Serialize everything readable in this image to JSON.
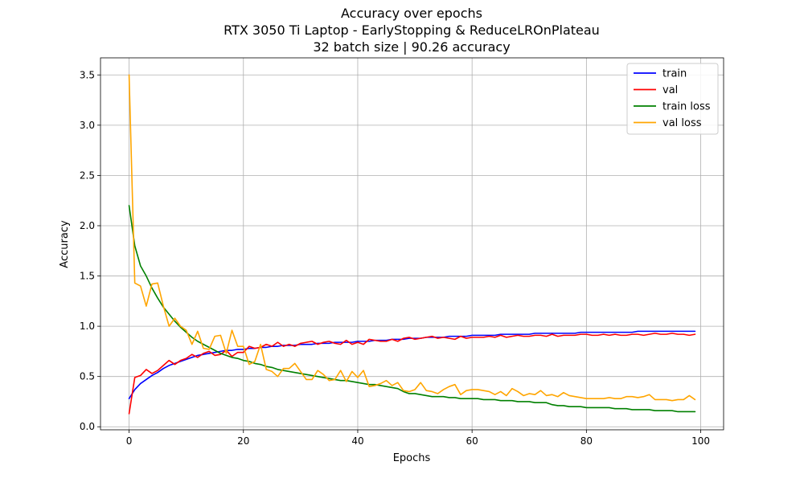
{
  "chart_data": {
    "type": "line",
    "title": "Accuracy over epochs",
    "subtitle_lines": [
      "RTX 3050 Ti Laptop - EarlyStopping & ReduceLROnPlateau",
      "32 batch size | 90.26 accuracy"
    ],
    "xlabel": "Epochs",
    "ylabel": "Accuracy",
    "xlim": [
      -5,
      104
    ],
    "ylim": [
      -0.03,
      3.67
    ],
    "xticks": [
      0,
      20,
      40,
      60,
      80,
      100
    ],
    "yticks": [
      0.0,
      0.5,
      1.0,
      1.5,
      2.0,
      2.5,
      3.0,
      3.5
    ],
    "xtick_labels": [
      "0",
      "20",
      "40",
      "60",
      "80",
      "100"
    ],
    "ytick_labels": [
      "0.0",
      "0.5",
      "1.0",
      "1.5",
      "2.0",
      "2.5",
      "3.0",
      "3.5"
    ],
    "grid": true,
    "legend_position": "top-right",
    "x": [
      0,
      1,
      2,
      3,
      4,
      5,
      6,
      7,
      8,
      9,
      10,
      11,
      12,
      13,
      14,
      15,
      16,
      17,
      18,
      19,
      20,
      21,
      22,
      23,
      24,
      25,
      26,
      27,
      28,
      29,
      30,
      31,
      32,
      33,
      34,
      35,
      36,
      37,
      38,
      39,
      40,
      41,
      42,
      43,
      44,
      45,
      46,
      47,
      48,
      49,
      50,
      51,
      52,
      53,
      54,
      55,
      56,
      57,
      58,
      59,
      60,
      61,
      62,
      63,
      64,
      65,
      66,
      67,
      68,
      69,
      70,
      71,
      72,
      73,
      74,
      75,
      76,
      77,
      78,
      79,
      80,
      81,
      82,
      83,
      84,
      85,
      86,
      87,
      88,
      89,
      90,
      91,
      92,
      93,
      94,
      95,
      96,
      97,
      98,
      99
    ],
    "series": [
      {
        "name": "train",
        "color": "#0000ff",
        "values": [
          0.28,
          0.37,
          0.43,
          0.47,
          0.51,
          0.54,
          0.58,
          0.61,
          0.63,
          0.65,
          0.67,
          0.69,
          0.71,
          0.72,
          0.73,
          0.74,
          0.75,
          0.76,
          0.76,
          0.77,
          0.77,
          0.78,
          0.78,
          0.79,
          0.79,
          0.8,
          0.8,
          0.81,
          0.81,
          0.81,
          0.82,
          0.82,
          0.82,
          0.83,
          0.83,
          0.83,
          0.84,
          0.84,
          0.84,
          0.84,
          0.85,
          0.85,
          0.85,
          0.86,
          0.86,
          0.86,
          0.87,
          0.87,
          0.87,
          0.88,
          0.88,
          0.88,
          0.89,
          0.89,
          0.89,
          0.89,
          0.9,
          0.9,
          0.9,
          0.9,
          0.91,
          0.91,
          0.91,
          0.91,
          0.91,
          0.92,
          0.92,
          0.92,
          0.92,
          0.92,
          0.92,
          0.93,
          0.93,
          0.93,
          0.93,
          0.93,
          0.93,
          0.93,
          0.93,
          0.94,
          0.94,
          0.94,
          0.94,
          0.94,
          0.94,
          0.94,
          0.94,
          0.94,
          0.94,
          0.95,
          0.95,
          0.95,
          0.95,
          0.95,
          0.95,
          0.95,
          0.95,
          0.95,
          0.95,
          0.95
        ]
      },
      {
        "name": "val",
        "color": "#ff0000",
        "values": [
          0.13,
          0.49,
          0.51,
          0.57,
          0.53,
          0.56,
          0.61,
          0.66,
          0.62,
          0.66,
          0.68,
          0.72,
          0.69,
          0.73,
          0.75,
          0.71,
          0.72,
          0.76,
          0.7,
          0.74,
          0.74,
          0.8,
          0.78,
          0.79,
          0.82,
          0.8,
          0.84,
          0.8,
          0.82,
          0.8,
          0.83,
          0.84,
          0.85,
          0.82,
          0.84,
          0.85,
          0.83,
          0.82,
          0.86,
          0.82,
          0.84,
          0.82,
          0.87,
          0.86,
          0.85,
          0.85,
          0.87,
          0.85,
          0.88,
          0.89,
          0.87,
          0.88,
          0.89,
          0.9,
          0.88,
          0.89,
          0.88,
          0.87,
          0.9,
          0.88,
          0.89,
          0.89,
          0.89,
          0.9,
          0.89,
          0.91,
          0.89,
          0.9,
          0.91,
          0.9,
          0.9,
          0.91,
          0.91,
          0.9,
          0.92,
          0.9,
          0.91,
          0.91,
          0.91,
          0.92,
          0.92,
          0.91,
          0.91,
          0.92,
          0.91,
          0.92,
          0.91,
          0.91,
          0.92,
          0.92,
          0.91,
          0.92,
          0.93,
          0.92,
          0.92,
          0.93,
          0.92,
          0.92,
          0.91,
          0.92
        ]
      },
      {
        "name": "train loss",
        "color": "#008000",
        "values": [
          2.2,
          1.8,
          1.6,
          1.5,
          1.38,
          1.28,
          1.19,
          1.12,
          1.05,
          0.99,
          0.94,
          0.89,
          0.85,
          0.82,
          0.79,
          0.76,
          0.73,
          0.71,
          0.69,
          0.68,
          0.66,
          0.65,
          0.63,
          0.62,
          0.6,
          0.59,
          0.57,
          0.56,
          0.55,
          0.54,
          0.53,
          0.52,
          0.51,
          0.5,
          0.49,
          0.48,
          0.47,
          0.46,
          0.46,
          0.45,
          0.44,
          0.43,
          0.42,
          0.42,
          0.41,
          0.4,
          0.39,
          0.38,
          0.35,
          0.33,
          0.33,
          0.32,
          0.31,
          0.3,
          0.3,
          0.3,
          0.29,
          0.29,
          0.28,
          0.28,
          0.28,
          0.28,
          0.27,
          0.27,
          0.27,
          0.26,
          0.26,
          0.26,
          0.25,
          0.25,
          0.25,
          0.24,
          0.24,
          0.24,
          0.22,
          0.21,
          0.21,
          0.2,
          0.2,
          0.2,
          0.19,
          0.19,
          0.19,
          0.19,
          0.19,
          0.18,
          0.18,
          0.18,
          0.17,
          0.17,
          0.17,
          0.17,
          0.16,
          0.16,
          0.16,
          0.16,
          0.15,
          0.15,
          0.15,
          0.15
        ]
      },
      {
        "name": "val loss",
        "color": "#ffa500",
        "values": [
          3.5,
          1.43,
          1.4,
          1.2,
          1.42,
          1.43,
          1.2,
          1.0,
          1.08,
          1.0,
          0.96,
          0.82,
          0.95,
          0.78,
          0.77,
          0.9,
          0.91,
          0.73,
          0.96,
          0.8,
          0.8,
          0.62,
          0.65,
          0.82,
          0.57,
          0.55,
          0.5,
          0.58,
          0.58,
          0.63,
          0.55,
          0.47,
          0.47,
          0.56,
          0.52,
          0.46,
          0.47,
          0.56,
          0.45,
          0.55,
          0.49,
          0.56,
          0.4,
          0.41,
          0.43,
          0.46,
          0.41,
          0.44,
          0.36,
          0.35,
          0.37,
          0.44,
          0.36,
          0.35,
          0.33,
          0.37,
          0.4,
          0.42,
          0.32,
          0.36,
          0.37,
          0.37,
          0.36,
          0.35,
          0.32,
          0.35,
          0.31,
          0.38,
          0.35,
          0.31,
          0.33,
          0.32,
          0.36,
          0.31,
          0.32,
          0.3,
          0.34,
          0.31,
          0.3,
          0.29,
          0.28,
          0.28,
          0.28,
          0.28,
          0.29,
          0.28,
          0.28,
          0.3,
          0.3,
          0.29,
          0.3,
          0.32,
          0.27,
          0.27,
          0.27,
          0.26,
          0.27,
          0.27,
          0.31,
          0.27
        ]
      }
    ]
  }
}
